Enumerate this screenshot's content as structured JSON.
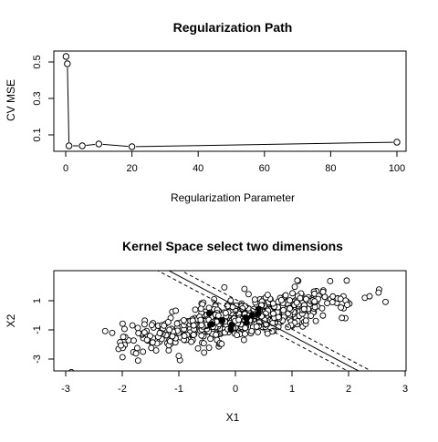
{
  "chart_data": [
    {
      "type": "line",
      "title": "Regularization Path",
      "xlabel": "Regularization Parameter",
      "ylabel": "CV MSE",
      "xlim": [
        0,
        100
      ],
      "ylim": [
        0.03,
        0.53
      ],
      "xticks": [
        0,
        20,
        40,
        60,
        80,
        100
      ],
      "yticks": [
        0.1,
        0.3,
        0.5
      ],
      "x": [
        0.1,
        0.5,
        1,
        5,
        10,
        20,
        100
      ],
      "y": [
        0.53,
        0.49,
        0.04,
        0.04,
        0.05,
        0.035,
        0.06
      ],
      "grid": false,
      "marker": "open-circle"
    },
    {
      "type": "scatter",
      "title": "Kernel Space select two dimensions",
      "xlabel": "X1",
      "ylabel": "X2",
      "xlim": [
        -3,
        2.8
      ],
      "ylim": [
        -3.5,
        3
      ],
      "xticks": [
        -3,
        -2,
        -1,
        0,
        1,
        2,
        3
      ],
      "yticks": [
        -3,
        -1,
        1
      ],
      "grid": false,
      "point_count": 600,
      "highlight_count": 12,
      "trend": {
        "slope": 0.72,
        "intercept": -0.3,
        "spread": 0.62
      },
      "decision_line": {
        "slope": -2.05,
        "intercept": 0.65
      },
      "margin_lines": [
        {
          "slope": -2.05,
          "intercept": 1.1
        },
        {
          "slope": -2.05,
          "intercept": 0.25
        }
      ]
    }
  ]
}
